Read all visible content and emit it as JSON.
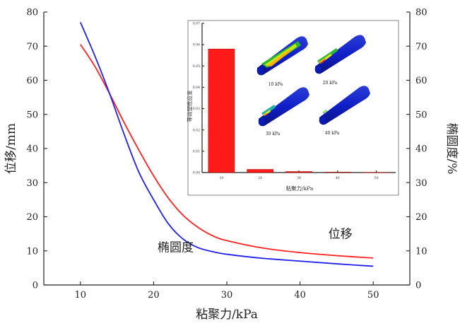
{
  "chart_data": {
    "main": {
      "type": "line",
      "xlabel": "粘聚力/kPa",
      "ylabel_left": "位移/mm",
      "ylabel_right": "椭圆度/%",
      "xlim": [
        5,
        55
      ],
      "ylim_left": [
        0,
        80
      ],
      "ylim_right": [
        0,
        80
      ],
      "x_ticks": [
        10,
        20,
        30,
        40,
        50
      ],
      "y_ticks": [
        0,
        10,
        20,
        30,
        40,
        50,
        60,
        70,
        80
      ],
      "grid": false,
      "series": [
        {
          "name": "位移",
          "color": "#ff2020",
          "axis": "left",
          "x": [
            10,
            12,
            14,
            16,
            18,
            20,
            22,
            24,
            26,
            28,
            30,
            35,
            40,
            45,
            50
          ],
          "y": [
            70.5,
            64,
            56,
            47.5,
            39.5,
            32,
            25.5,
            20.5,
            17,
            14.5,
            13,
            10.8,
            9.5,
            8.6,
            7.9
          ]
        },
        {
          "name": "椭圆度",
          "color": "#2020ee",
          "axis": "right",
          "x": [
            10,
            12,
            14,
            16,
            18,
            20,
            22,
            24,
            26,
            28,
            30,
            35,
            40,
            45,
            50
          ],
          "y": [
            77,
            67,
            56,
            44,
            33,
            25,
            18,
            13.5,
            11,
            9.8,
            9,
            7.8,
            7,
            6.2,
            5.5
          ]
        }
      ],
      "annotations": [
        {
          "text": "椭圆度",
          "x": 23,
          "y": 9
        },
        {
          "text": "位移",
          "x": 45.5,
          "y": 13
        }
      ]
    },
    "inset": {
      "type": "bar",
      "xlabel": "粘聚力/kPa",
      "ylabel": "等效塑性应变",
      "categories": [
        "10",
        "20",
        "30",
        "40",
        "50"
      ],
      "values": [
        0.058,
        0.0015,
        0.0005,
        0.0002,
        0.0001
      ],
      "ylim": [
        0.0,
        0.07
      ],
      "y_ticks": [
        "0.00",
        "0.01",
        "0.02",
        "0.03",
        "0.04",
        "0.05",
        "0.06",
        "0.07"
      ],
      "bar_color": "#ff1a1a",
      "image_labels": [
        "10 kPa",
        "20 kPa",
        "30 kPa",
        "40 kPa"
      ]
    }
  }
}
